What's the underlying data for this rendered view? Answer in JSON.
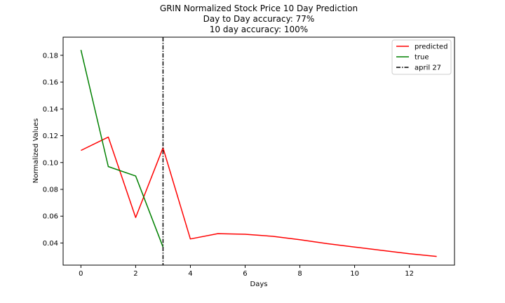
{
  "chart_data": {
    "type": "line",
    "title_lines": [
      "GRIN Normalized Stock Price 10 Day Prediction",
      "Day to Day accuracy: 77%",
      "10 day accuracy: 100%"
    ],
    "xlabel": "Days",
    "ylabel": "Normalized Values",
    "xlim": [
      -0.65,
      13.65
    ],
    "ylim": [
      0.0235,
      0.1935
    ],
    "xticks": [
      0,
      2,
      4,
      6,
      8,
      10,
      12
    ],
    "yticks": [
      0.04,
      0.06,
      0.08,
      0.1,
      0.12,
      0.14,
      0.16,
      0.18
    ],
    "ytick_labels": [
      "0.04",
      "0.06",
      "0.08",
      "0.10",
      "0.12",
      "0.14",
      "0.16",
      "0.18"
    ],
    "grid": false,
    "legend_position": "top-right",
    "series": [
      {
        "name": "predicted",
        "color": "#ff0000",
        "style": "solid",
        "x": [
          0,
          1,
          2,
          3,
          4,
          5,
          6,
          7,
          8,
          9,
          10,
          11,
          12,
          13
        ],
        "y": [
          0.109,
          0.119,
          0.059,
          0.111,
          0.043,
          0.047,
          0.0465,
          0.045,
          0.0425,
          0.0395,
          0.037,
          0.0345,
          0.032,
          0.03
        ]
      },
      {
        "name": "true",
        "color": "#008000",
        "style": "solid",
        "x": [
          0,
          1,
          2,
          3
        ],
        "y": [
          0.184,
          0.097,
          0.09,
          0.037
        ]
      }
    ],
    "vline": {
      "name": "april 27",
      "x": 3,
      "color": "#000000",
      "style": "dashdot"
    }
  }
}
